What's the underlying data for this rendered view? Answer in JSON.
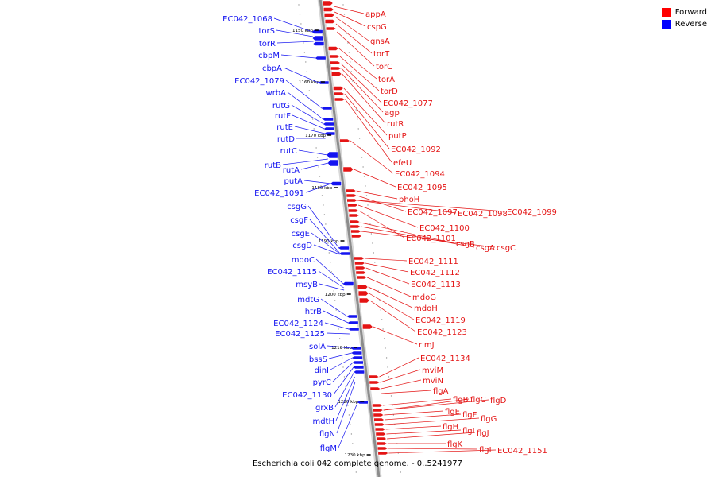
{
  "colors": {
    "forward": "#e41414",
    "reverse": "#1414f0",
    "axis": "#8c8c8c"
  },
  "legend": [
    {
      "label": "Forward",
      "color": "#ff0000"
    },
    {
      "label": "Reverse",
      "color": "#0000ff"
    }
  ],
  "caption": "Escherichia coli 042 complete genome. - 0..5241977",
  "ticks": [
    "1150 kbp",
    "1160 kbp",
    "1170 kbp",
    "1180 kbp",
    "1190 kbp",
    "1200 kbp",
    "1210 kbp",
    "1220 kbp",
    "1230 kbp"
  ],
  "reverse_labels": [
    "EC042_1068",
    "torS",
    "torR",
    "cbpM",
    "cbpA",
    "EC042_1079",
    "wrbA",
    "rutG",
    "rutF",
    "rutE",
    "rutD",
    "rutC",
    "rutB",
    "rutA",
    "putA",
    "EC042_1091",
    "csgG",
    "csgF",
    "csgE",
    "csgD",
    "mdoC",
    "EC042_1115",
    "msyB",
    "mdtG",
    "htrB",
    "EC042_1124",
    "EC042_1125",
    "solA",
    "bssS",
    "dinI",
    "pyrC",
    "EC042_1130",
    "grxB",
    "mdtH",
    "flgN",
    "flgM"
  ],
  "forward_labels": [
    "appA",
    "cspG",
    "gnsA",
    "torT",
    "torC",
    "torA",
    "torD",
    "EC042_1077",
    "agp",
    "rutR",
    "putP",
    "EC042_1092",
    "efeU",
    "EC042_1094",
    "EC042_1095",
    "phoH",
    "EC042_1097",
    "EC042_1098",
    "EC042_1099",
    "EC042_1100",
    "EC042_1101",
    "csgB",
    "csgA",
    "csgC",
    "EC042_1111",
    "EC042_1112",
    "EC042_1113",
    "mdoG",
    "mdoH",
    "EC042_1119",
    "EC042_1123",
    "rimJ",
    "EC042_1134",
    "mviM",
    "mviN",
    "flgA",
    "flgB",
    "flgC",
    "flgD",
    "flgE",
    "flgF",
    "flgG",
    "flgH",
    "flgI",
    "flgJ",
    "flgK",
    "flgL",
    "EC042_1151"
  ]
}
